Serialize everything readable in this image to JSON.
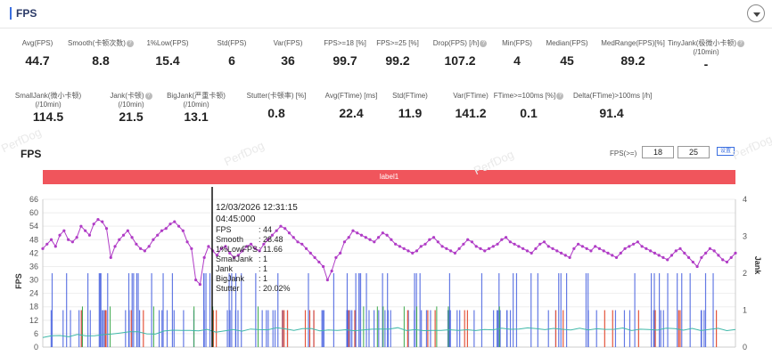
{
  "header": {
    "title": "FPS"
  },
  "watermark": "PerfDog",
  "metrics_row1": [
    {
      "label": "Avg(FPS)",
      "value": "44.7",
      "help": false
    },
    {
      "label": "Smooth(卡顿次数)",
      "value": "8.8",
      "help": true
    },
    {
      "label": "1%Low(FPS)",
      "value": "15.4",
      "help": false
    },
    {
      "label": "Std(FPS)",
      "value": "6",
      "help": false
    },
    {
      "label": "Var(FPS)",
      "value": "36",
      "help": false
    },
    {
      "label": "FPS>=18 [%]",
      "value": "99.7",
      "help": false
    },
    {
      "label": "FPS>=25 [%]",
      "value": "99.2",
      "help": false
    },
    {
      "label": "Drop(FPS) [/h]",
      "value": "107.2",
      "help": true
    },
    {
      "label": "Min(FPS)",
      "value": "4",
      "help": false
    },
    {
      "label": "Median(FPS)",
      "value": "45",
      "help": false
    },
    {
      "label": "MedRange(FPS)[%]",
      "value": "89.2",
      "help": false
    },
    {
      "label": "TinyJank(极微小卡顿)",
      "label2": "(/10min)",
      "value": "-",
      "help": true
    }
  ],
  "metrics_row2": [
    {
      "label": "SmallJank(微小卡顿)",
      "label2": "(/10min)",
      "value": "114.5",
      "help": false
    },
    {
      "label": "Jank(卡顿)",
      "label2": "(/10min)",
      "value": "21.5",
      "help": true
    },
    {
      "label": "BigJank(严重卡顿)",
      "label2": "(/10min)",
      "value": "13.1",
      "help": false
    },
    {
      "label": "Stutter(卡顿率) [%]",
      "value": "0.8",
      "help": false
    },
    {
      "label": "Avg(FTime) [ms]",
      "value": "22.4",
      "help": false
    },
    {
      "label": "Std(FTime)",
      "value": "11.9",
      "help": false
    },
    {
      "label": "Var(FTime)",
      "value": "141.2",
      "help": false
    },
    {
      "label": "FTime>=100ms [%]",
      "value": "0.1",
      "help": true
    },
    {
      "label": "Delta(FTime)>100ms [/h]",
      "value": "91.4",
      "help": false
    }
  ],
  "chart_title": "FPS",
  "fps_filter": {
    "label": "FPS(>=)",
    "value1": "18",
    "value2": "25",
    "button": "设置"
  },
  "label_bar": "label1",
  "axes": {
    "y_left_label": "FPS",
    "y_right_label": "Jank",
    "y_left_ticks": [
      "0",
      "6",
      "12",
      "18",
      "24",
      "30",
      "36",
      "42",
      "48",
      "54",
      "60",
      "66"
    ],
    "y_right_ticks": [
      "0",
      "1",
      "2",
      "3",
      "4"
    ]
  },
  "tooltip": {
    "datetime": "12/03/2026 12:31:15",
    "time": "04:45:000",
    "rows": [
      {
        "k": "FPS",
        "v": ": 44"
      },
      {
        "k": "Smooth",
        "v": ": 28.48"
      },
      {
        "k": "1%LowFPS",
        "v": ": 11.66"
      },
      {
        "k": "SmallJank",
        "v": ": 1"
      },
      {
        "k": "Jank",
        "v": ": 1"
      },
      {
        "k": "BigJank",
        "v": ": 1"
      },
      {
        "k": "Stutter",
        "v": ": 20.02%"
      }
    ]
  },
  "colors": {
    "fps": "#b03cc6",
    "jank_bars": "#4a63e0",
    "smooth": "#3fb8a8",
    "red_marks": "#e4553c",
    "green_marks": "#3ba84a",
    "label": "#f0555c"
  },
  "chart_data": {
    "type": "line",
    "ylim_left": [
      0,
      66
    ],
    "ylim_right": [
      0,
      4
    ],
    "series": [
      {
        "name": "FPS",
        "values": [
          44,
          46,
          48,
          45,
          50,
          52,
          48,
          47,
          49,
          54,
          52,
          50,
          55,
          57,
          56,
          53,
          40,
          45,
          48,
          50,
          52,
          49,
          46,
          44,
          43,
          45,
          48,
          50,
          52,
          53,
          55,
          56,
          54,
          52,
          47,
          44,
          30,
          28,
          40,
          45,
          43,
          41,
          44,
          45,
          42,
          40,
          41,
          43,
          45,
          46,
          44,
          43,
          46,
          48,
          50,
          52,
          54,
          53,
          51,
          49,
          47,
          46,
          44,
          42,
          40,
          38,
          36,
          30,
          34,
          40,
          42,
          47,
          49,
          52,
          51,
          50,
          49,
          48,
          47,
          49,
          51,
          50,
          48,
          46,
          45,
          44,
          43,
          42,
          43,
          45,
          46,
          48,
          49,
          47,
          45,
          44,
          43,
          42,
          44,
          46,
          48,
          47,
          45,
          44,
          43,
          44,
          45,
          46,
          48,
          49,
          47,
          46,
          45,
          44,
          43,
          42,
          44,
          46,
          47,
          45,
          44,
          43,
          42,
          41,
          40,
          44,
          46,
          45,
          44,
          43,
          45,
          44,
          43,
          42,
          41,
          40,
          42,
          44,
          45,
          46,
          47,
          45,
          44,
          43,
          42,
          41,
          40,
          39,
          41,
          43,
          44,
          42,
          40,
          38,
          36,
          40,
          42,
          44,
          43,
          41,
          39,
          38,
          40,
          42
        ]
      }
    ]
  }
}
